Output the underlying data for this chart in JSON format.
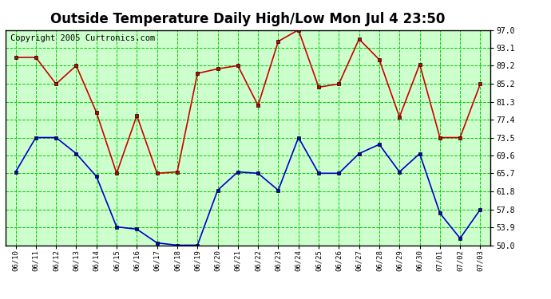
{
  "title": "Outside Temperature Daily High/Low Mon Jul 4 23:50",
  "copyright": "Copyright 2005 Curtronics.com",
  "dates": [
    "06/10",
    "06/11",
    "06/12",
    "06/13",
    "06/14",
    "06/15",
    "06/16",
    "06/17",
    "06/18",
    "06/19",
    "06/20",
    "06/21",
    "06/22",
    "06/23",
    "06/24",
    "06/25",
    "06/26",
    "06/27",
    "06/28",
    "06/29",
    "06/30",
    "07/01",
    "07/02",
    "07/03"
  ],
  "high_temps": [
    91.0,
    91.0,
    85.2,
    89.2,
    79.0,
    65.7,
    78.3,
    65.7,
    66.0,
    87.5,
    88.5,
    89.2,
    80.5,
    94.5,
    97.0,
    84.5,
    85.2,
    95.0,
    90.5,
    78.0,
    89.5,
    73.5,
    73.5,
    85.2
  ],
  "low_temps": [
    66.0,
    73.5,
    73.5,
    70.0,
    65.0,
    54.0,
    53.5,
    50.5,
    50.0,
    50.0,
    62.0,
    66.0,
    65.7,
    62.0,
    73.5,
    65.7,
    65.7,
    70.0,
    72.0,
    66.0,
    70.0,
    57.0,
    51.5,
    57.8
  ],
  "high_color": "#cc0000",
  "low_color": "#0000cc",
  "marker_color": "#000000",
  "bg_color": "#ccffcc",
  "grid_color": "#00cc00",
  "title_fontsize": 12,
  "copyright_fontsize": 7.5,
  "ymin": 50.0,
  "ymax": 97.0,
  "yticks": [
    50.0,
    53.9,
    57.8,
    61.8,
    65.7,
    69.6,
    73.5,
    77.4,
    81.3,
    85.2,
    89.2,
    93.1,
    97.0
  ],
  "fig_width": 6.9,
  "fig_height": 3.75,
  "dpi": 100
}
